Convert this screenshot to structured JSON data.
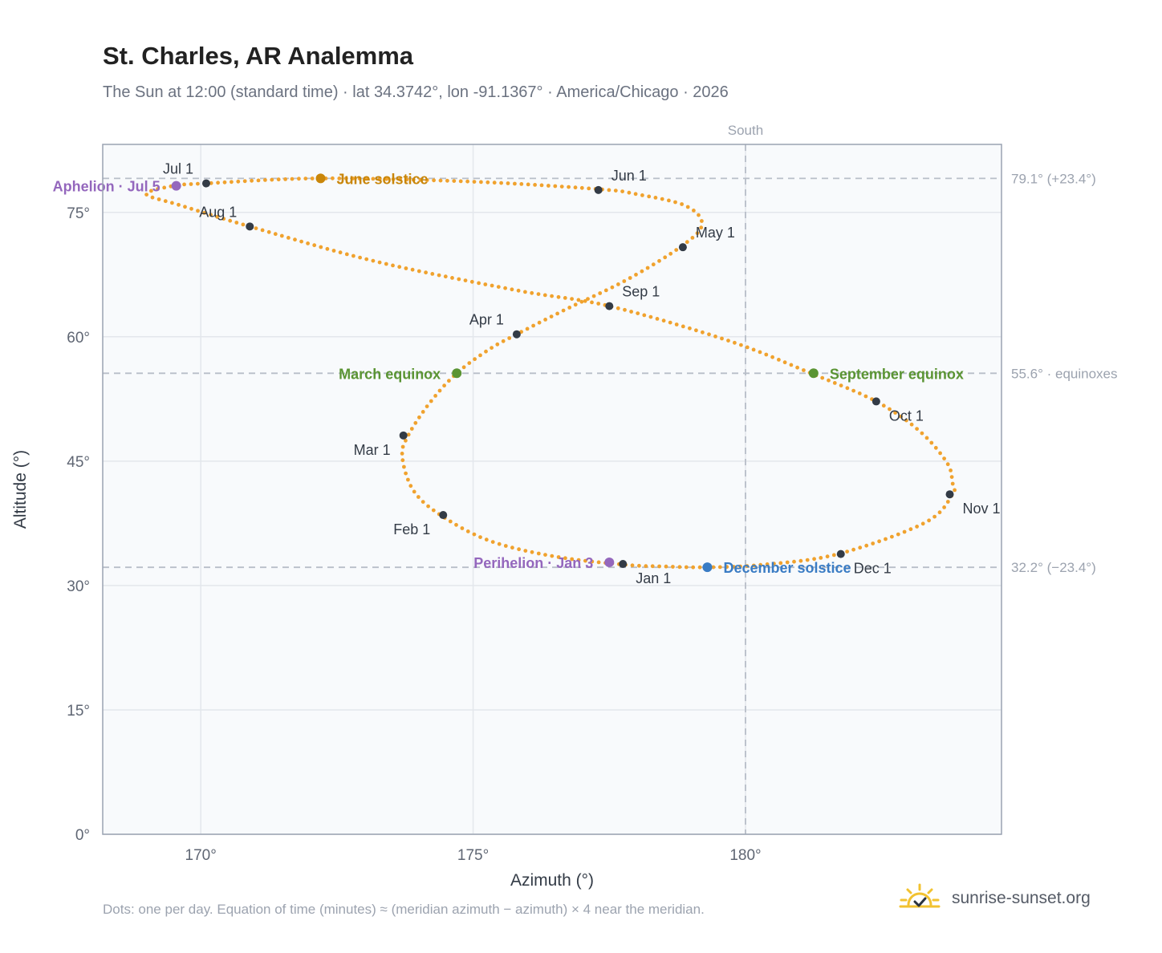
{
  "header": {
    "title": "St. Charles, AR Analemma",
    "subtitle": "The Sun at 12:00 (standard time) · lat 34.3742°, lon -91.1367° · America/Chicago · 2026"
  },
  "footer": {
    "note": "Dots: one per day. Equation of time (minutes) ≈ (meridian azimuth − azimuth) × 4 near the meridian.",
    "brand": "sunrise-sunset.org",
    "brand_icon": "sunrise-logo-icon"
  },
  "colors": {
    "path": "#f0a22e",
    "month_dot": "#333b46",
    "june_solstice": "#c9860a",
    "december_solstice": "#3a7cc4",
    "equinox": "#5a9433",
    "apsis": "#9467bd",
    "reference_line": "#b8bec8",
    "plot_bg": "#f8fafc",
    "grid": "#e3e7ec",
    "axis_frame": "#9aa3b2"
  },
  "chart_data": {
    "type": "scatter",
    "title": "St. Charles, AR Analemma",
    "xlabel": "Azimuth (°)",
    "ylabel": "Altitude (°)",
    "xlim": [
      168.2,
      184.7
    ],
    "ylim": [
      0,
      83.2
    ],
    "x_ticks": [
      {
        "value": 170,
        "label": "170°"
      },
      {
        "value": 175,
        "label": "175°"
      },
      {
        "value": 180,
        "label": "180°"
      }
    ],
    "y_ticks": [
      {
        "value": 0,
        "label": "0°"
      },
      {
        "value": 15,
        "label": "15°"
      },
      {
        "value": 30,
        "label": "30°"
      },
      {
        "value": 45,
        "label": "45°"
      },
      {
        "value": 60,
        "label": "60°"
      },
      {
        "value": 75,
        "label": "75°"
      }
    ],
    "grid": true,
    "reference_lines": [
      {
        "orientation": "vertical",
        "value": 180,
        "label": "South"
      },
      {
        "orientation": "horizontal",
        "value": 79.1,
        "label": "79.1° (+23.4°)"
      },
      {
        "orientation": "horizontal",
        "value": 55.6,
        "label": "55.6° · equinoxes"
      },
      {
        "orientation": "horizontal",
        "value": 32.2,
        "label": "32.2° (−23.4°)"
      }
    ],
    "daily_path_anchors": [
      {
        "az": 177.8,
        "alt": 32.5
      },
      {
        "az": 176.5,
        "alt": 33.5
      },
      {
        "az": 175.3,
        "alt": 35.4
      },
      {
        "az": 174.4,
        "alt": 38.5
      },
      {
        "az": 173.9,
        "alt": 41.5
      },
      {
        "az": 173.7,
        "alt": 45.5
      },
      {
        "az": 173.8,
        "alt": 48.0
      },
      {
        "az": 174.2,
        "alt": 52.0
      },
      {
        "az": 174.7,
        "alt": 55.6
      },
      {
        "az": 175.3,
        "alt": 58.5
      },
      {
        "az": 175.8,
        "alt": 60.3
      },
      {
        "az": 176.7,
        "alt": 63.3
      },
      {
        "az": 177.8,
        "alt": 66.8
      },
      {
        "az": 178.8,
        "alt": 70.8
      },
      {
        "az": 179.2,
        "alt": 73.5
      },
      {
        "az": 178.9,
        "alt": 75.8
      },
      {
        "az": 178.0,
        "alt": 77.2
      },
      {
        "az": 177.3,
        "alt": 77.8
      },
      {
        "az": 175.0,
        "alt": 78.7
      },
      {
        "az": 172.2,
        "alt": 79.1
      },
      {
        "az": 170.1,
        "alt": 78.5
      },
      {
        "az": 169.5,
        "alt": 78.2
      },
      {
        "az": 169.0,
        "alt": 77.2
      },
      {
        "az": 169.6,
        "alt": 75.9
      },
      {
        "az": 170.9,
        "alt": 73.3
      },
      {
        "az": 173.2,
        "alt": 69.1
      },
      {
        "az": 175.8,
        "alt": 65.6
      },
      {
        "az": 177.5,
        "alt": 63.7
      },
      {
        "az": 179.7,
        "alt": 59.5
      },
      {
        "az": 181.2,
        "alt": 55.6
      },
      {
        "az": 182.4,
        "alt": 52.2
      },
      {
        "az": 183.2,
        "alt": 48.6
      },
      {
        "az": 183.7,
        "alt": 44.8
      },
      {
        "az": 183.8,
        "alt": 42.4
      },
      {
        "az": 183.8,
        "alt": 41.0
      },
      {
        "az": 183.3,
        "alt": 37.6
      },
      {
        "az": 181.7,
        "alt": 33.8
      },
      {
        "az": 180.3,
        "alt": 32.5
      },
      {
        "az": 179.3,
        "alt": 32.2
      },
      {
        "az": 178.5,
        "alt": 32.3
      },
      {
        "az": 177.8,
        "alt": 32.5
      }
    ],
    "month_markers": [
      {
        "label": "Jan 1",
        "az": 177.75,
        "alt": 32.6,
        "label_pos": "below-right"
      },
      {
        "label": "Feb 1",
        "az": 174.45,
        "alt": 38.5,
        "label_pos": "below-left"
      },
      {
        "label": "Mar 1",
        "az": 173.72,
        "alt": 48.1,
        "label_pos": "below-left"
      },
      {
        "label": "Apr 1",
        "az": 175.8,
        "alt": 60.3,
        "label_pos": "above-left"
      },
      {
        "label": "May 1",
        "az": 178.85,
        "alt": 70.8,
        "label_pos": "above-right"
      },
      {
        "label": "Jun 1",
        "az": 177.3,
        "alt": 77.7,
        "label_pos": "above-right"
      },
      {
        "label": "Jul 1",
        "az": 170.1,
        "alt": 78.5,
        "label_pos": "above-left"
      },
      {
        "label": "Aug 1",
        "az": 170.9,
        "alt": 73.3,
        "label_pos": "above-left"
      },
      {
        "label": "Sep 1",
        "az": 177.5,
        "alt": 63.7,
        "label_pos": "above-right"
      },
      {
        "label": "Oct 1",
        "az": 182.4,
        "alt": 52.2,
        "label_pos": "below-right"
      },
      {
        "label": "Nov 1",
        "az": 183.75,
        "alt": 41.0,
        "label_pos": "below-right"
      },
      {
        "label": "Dec 1",
        "az": 181.75,
        "alt": 33.8,
        "label_pos": "below-right"
      }
    ],
    "events": [
      {
        "label": "June solstice",
        "az": 172.2,
        "alt": 79.1,
        "color": "#c9860a",
        "label_side": "right"
      },
      {
        "label": "December solstice",
        "az": 179.3,
        "alt": 32.2,
        "color": "#3a7cc4",
        "label_side": "right"
      },
      {
        "label": "March equinox",
        "az": 174.7,
        "alt": 55.6,
        "color": "#5a9433",
        "label_side": "left"
      },
      {
        "label": "September equinox",
        "az": 181.25,
        "alt": 55.6,
        "color": "#5a9433",
        "label_side": "right"
      },
      {
        "label": "Perihelion · Jan 3",
        "az": 177.5,
        "alt": 32.8,
        "color": "#9467bd",
        "label_side": "left"
      },
      {
        "label": "Aphelion · Jul 5",
        "az": 169.55,
        "alt": 78.2,
        "color": "#9467bd",
        "label_side": "left"
      }
    ]
  }
}
